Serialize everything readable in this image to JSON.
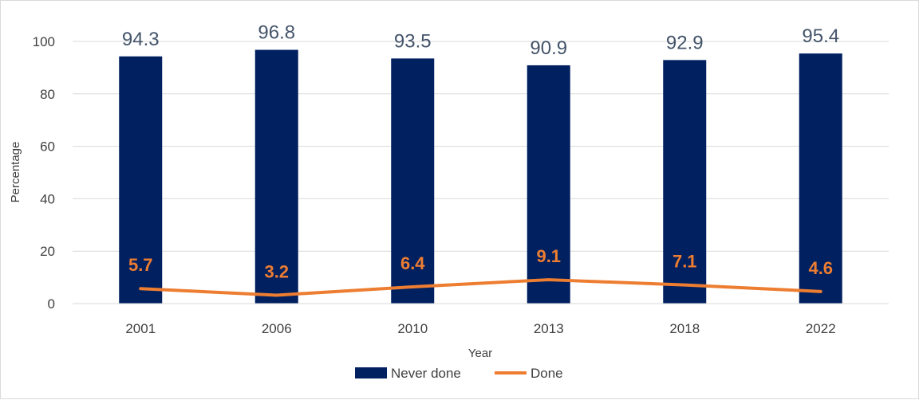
{
  "chart_data": {
    "type": "bar",
    "categories": [
      "2001",
      "2006",
      "2010",
      "2013",
      "2018",
      "2022"
    ],
    "series": [
      {
        "name": "Never done",
        "type": "bar",
        "color": "#002060",
        "values": [
          94.3,
          96.8,
          93.5,
          90.9,
          92.9,
          95.4
        ],
        "labels": [
          "94.3",
          "96.8",
          "93.5",
          "90.9",
          "92.9",
          "95.4"
        ]
      },
      {
        "name": "Done",
        "type": "line",
        "color": "#ed7d31",
        "values": [
          5.7,
          3.2,
          6.4,
          9.1,
          7.1,
          4.6
        ],
        "labels": [
          "5.7",
          "3.2",
          "6.4",
          "9.1",
          "7.1",
          "4.6"
        ]
      }
    ],
    "xlabel": "Year",
    "ylabel": "Percentage",
    "ylim": [
      0,
      100
    ],
    "yticks": [
      "0",
      "20",
      "40",
      "60",
      "80",
      "100"
    ],
    "grid": true,
    "legend": "bottom"
  }
}
